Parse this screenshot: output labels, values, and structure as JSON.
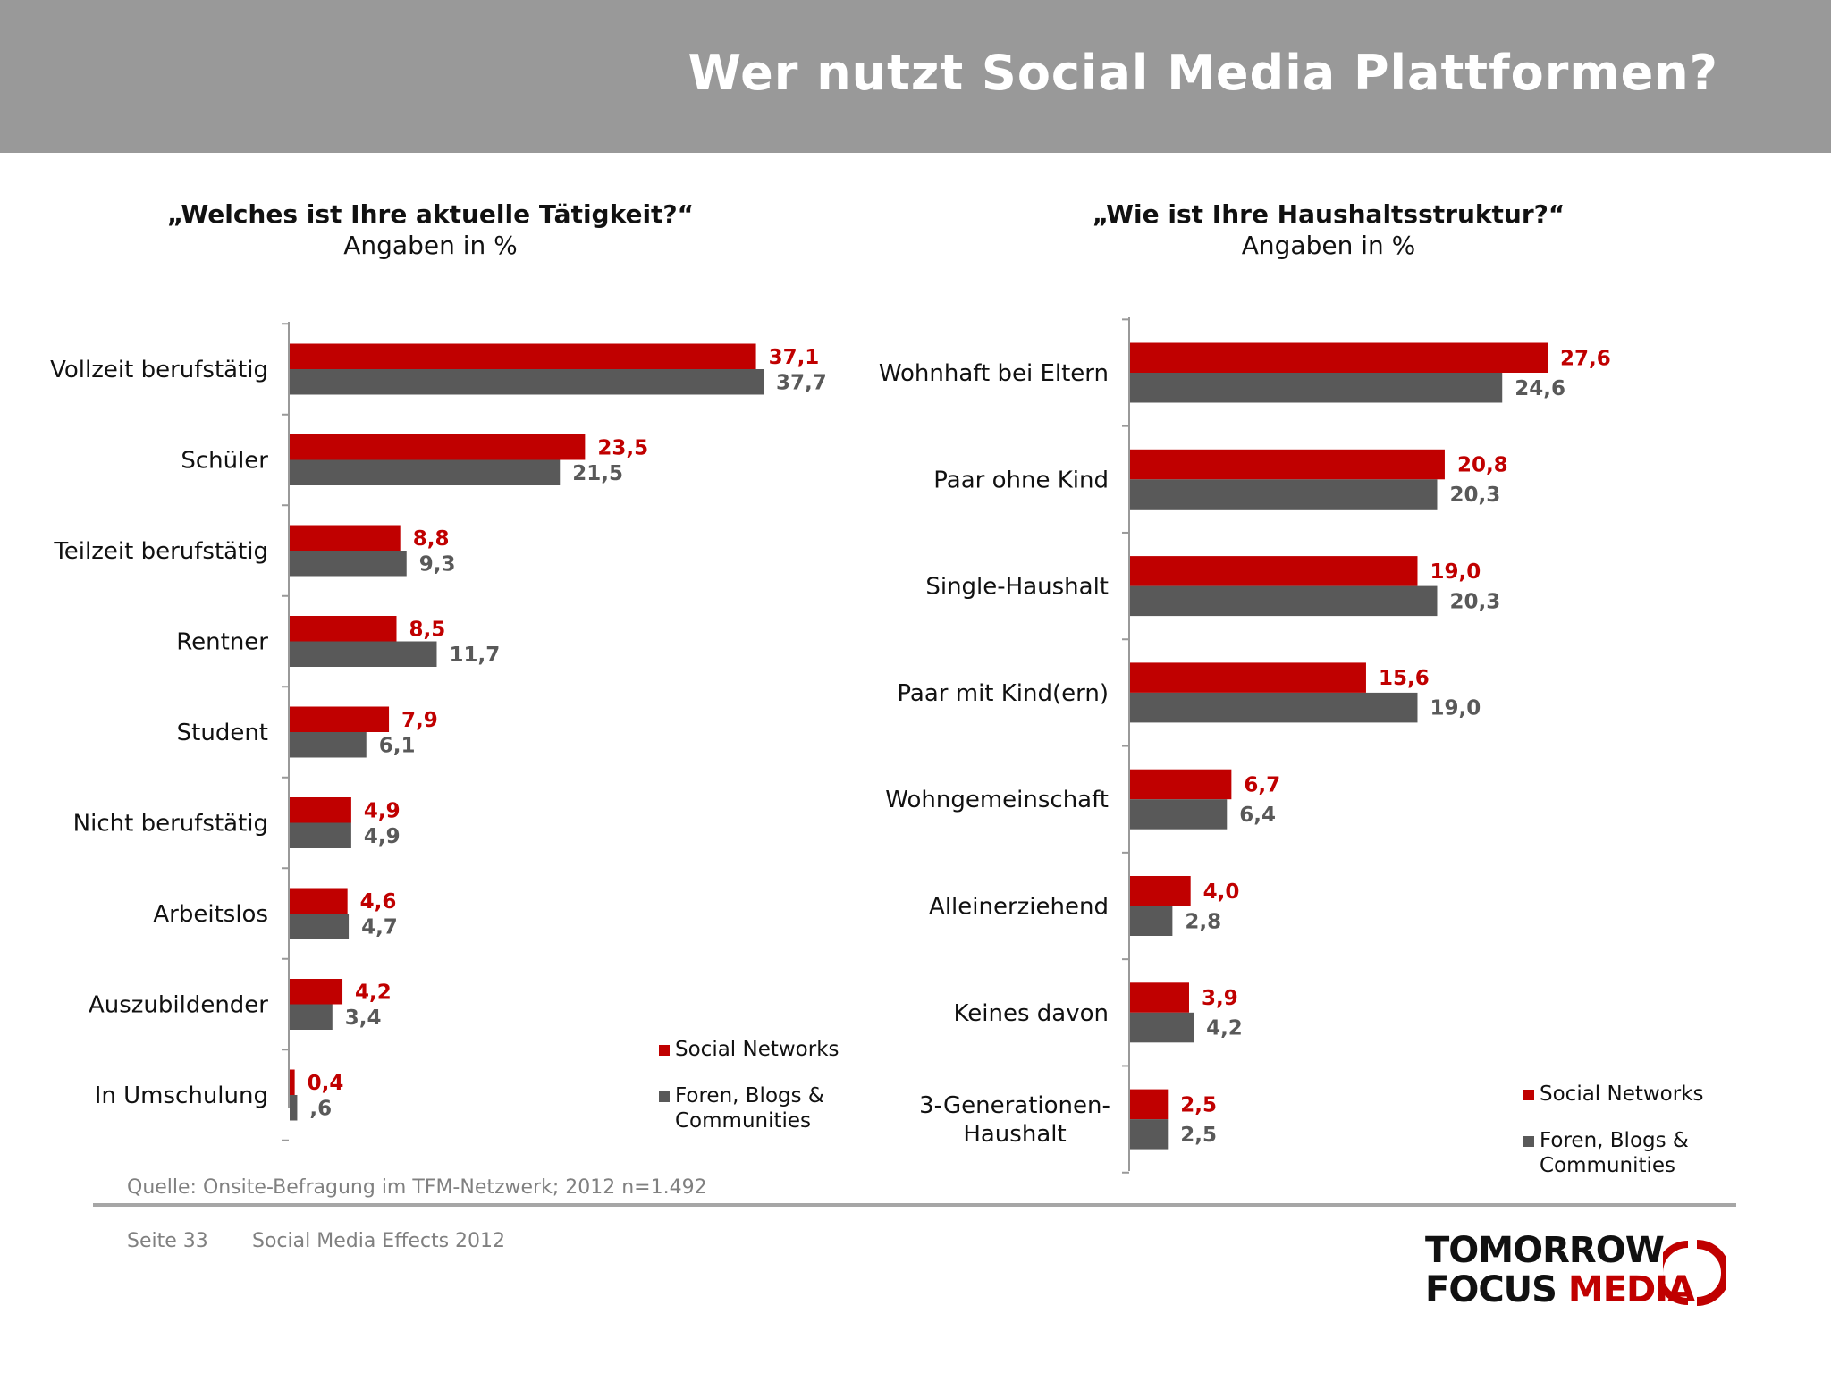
{
  "header": {
    "title": "Wer nutzt Social Media Plattformen?"
  },
  "colors": {
    "social_networks": "#c00000",
    "foren_blogs": "#595959",
    "header_bg": "#999999"
  },
  "legend": {
    "social_networks": "Social Networks",
    "foren_blogs": "Foren, Blogs & Communities"
  },
  "chart_data": [
    {
      "type": "bar",
      "orientation": "horizontal",
      "title": "„Welches ist Ihre aktuelle Tätigkeit?“",
      "subtitle": "Angaben in %",
      "categories": [
        "Vollzeit berufstätig",
        "Schüler",
        "Teilzeit berufstätig",
        "Rentner",
        "Student",
        "Nicht berufstätig",
        "Arbeitslos",
        "Auszubildender",
        "In Umschulung"
      ],
      "series": [
        {
          "name": "Social Networks",
          "values": [
            37.1,
            23.5,
            8.8,
            8.5,
            7.9,
            4.9,
            4.6,
            4.2,
            0.4
          ],
          "labels": [
            "37,1",
            "23,5",
            "8,8",
            "8,5",
            "7,9",
            "4,9",
            "4,6",
            "4,2",
            "0,4"
          ]
        },
        {
          "name": "Foren, Blogs & Communities",
          "values": [
            37.7,
            21.5,
            9.3,
            11.7,
            6.1,
            4.9,
            4.7,
            3.4,
            0.6
          ],
          "labels": [
            "37,7",
            "21,5",
            "9,3",
            "11,7",
            "6,1",
            "4,9",
            "4,7",
            "3,4",
            ",6"
          ]
        }
      ],
      "legend_position": "bottom-right",
      "grid": false
    },
    {
      "type": "bar",
      "orientation": "horizontal",
      "title": "„Wie ist Ihre Haushaltsstruktur?“",
      "subtitle": "Angaben in %",
      "categories": [
        "Wohnhaft bei Eltern",
        "Paar ohne Kind",
        "Single-Haushalt",
        "Paar mit Kind(ern)",
        "Wohngemeinschaft",
        "Alleinerziehend",
        "Keines davon",
        "3-Generationen-\nHaushalt"
      ],
      "series": [
        {
          "name": "Social Networks",
          "values": [
            27.6,
            20.8,
            19.0,
            15.6,
            6.7,
            4.0,
            3.9,
            2.5
          ],
          "labels": [
            "27,6",
            "20,8",
            "19,0",
            "15,6",
            "6,7",
            "4,0",
            "3,9",
            "2,5"
          ]
        },
        {
          "name": "Foren, Blogs & Communities",
          "values": [
            24.6,
            20.3,
            20.3,
            19.0,
            6.4,
            2.8,
            4.2,
            2.5
          ],
          "labels": [
            "24,6",
            "20,3",
            "20,3",
            "19,0",
            "6,4",
            "2,8",
            "4,2",
            "2,5"
          ]
        }
      ],
      "legend_position": "bottom-right",
      "grid": false
    }
  ],
  "source": "Quelle: Onsite-Befragung im TFM-Netzwerk; 2012 n=1.492",
  "footer": {
    "page": "Seite 33",
    "document": "Social Media Effects 2012"
  },
  "logo": {
    "line1": "TOMORROW",
    "line2_a": "FOCUS ",
    "line2_b": "MEDIA"
  }
}
